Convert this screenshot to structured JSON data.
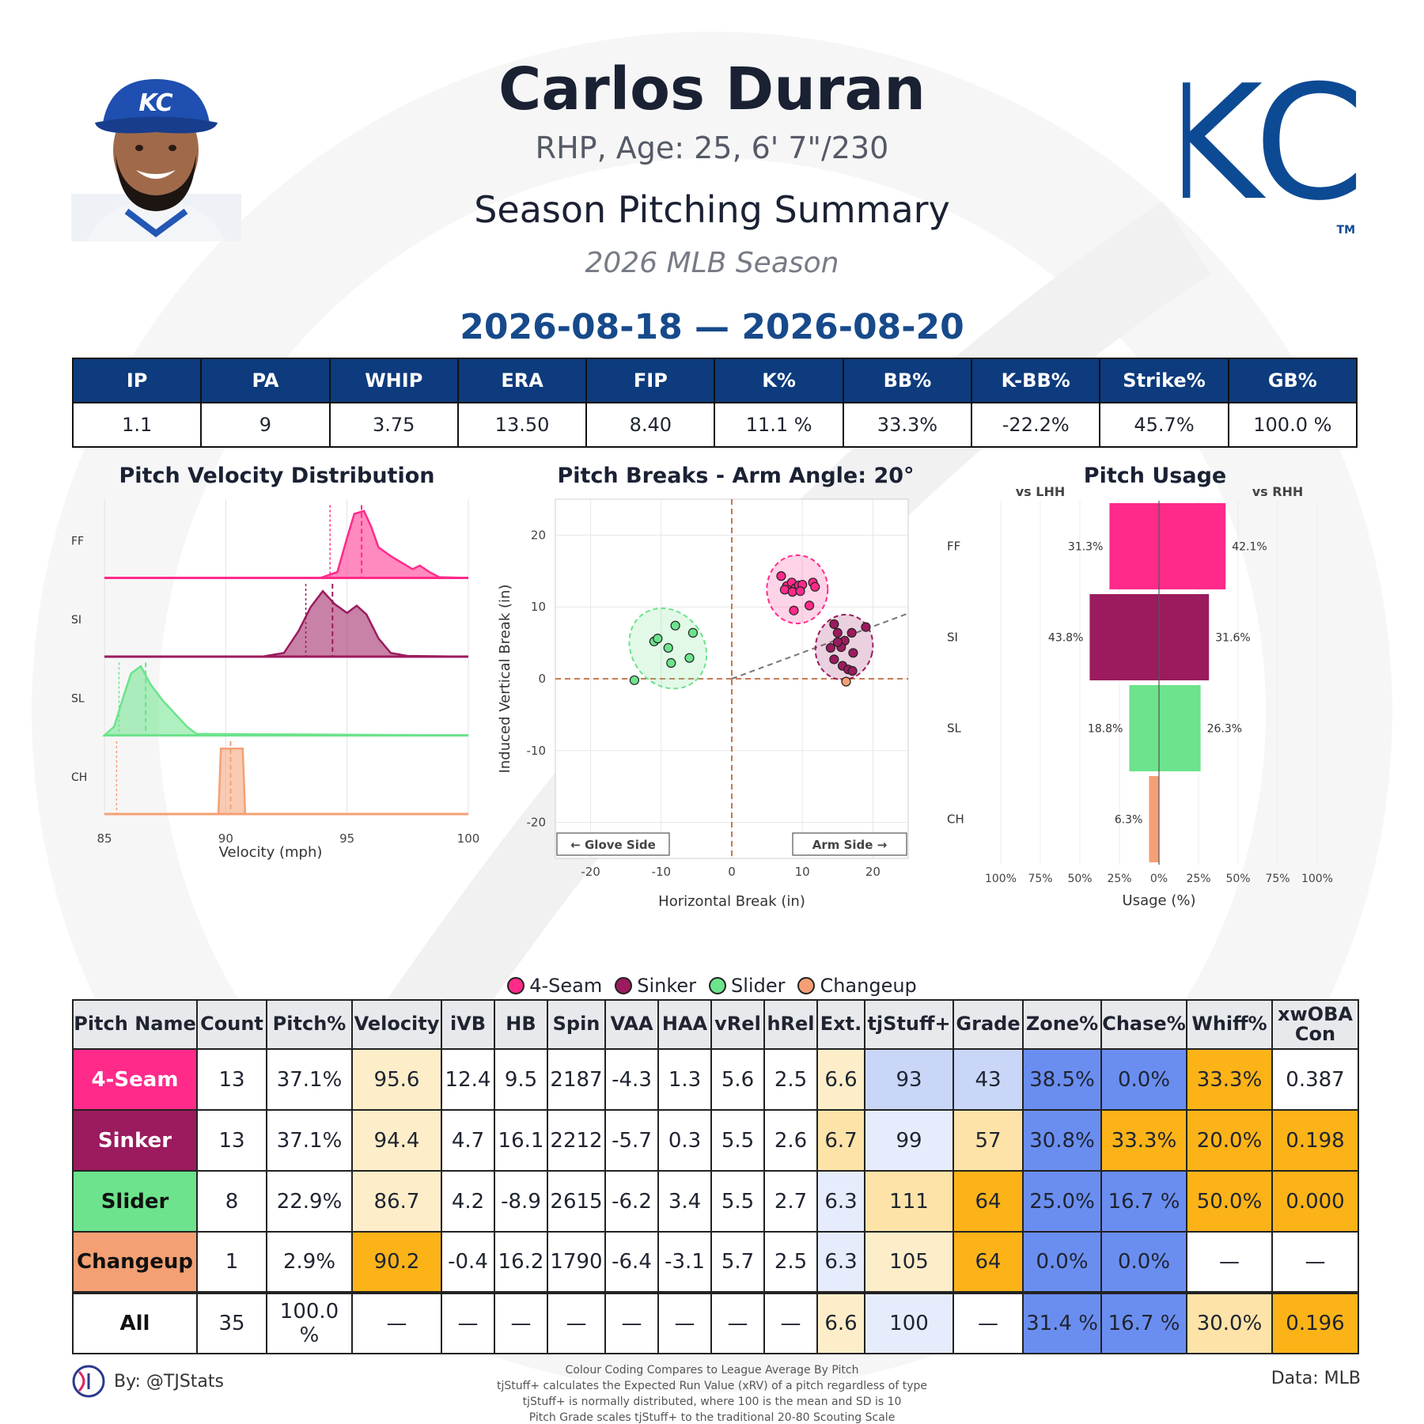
{
  "player": {
    "name": "Carlos Duran",
    "info": "RHP, Age: 25, 6' 7\"/230",
    "summary_title": "Season Pitching Summary",
    "season": "2026 MLB Season",
    "date_range": "2026-08-18 — 2026-08-20",
    "team_logo_text": "KC",
    "tm": "TM"
  },
  "colors": {
    "header_blue": "#0d3b7d",
    "date_blue": "#174a8b",
    "four_seam": "#ff2a8a",
    "sinker": "#9b1b5e",
    "slider": "#6ce38c",
    "changeup": "#f4a074",
    "cell_blue_strong": "#6a8ef0",
    "cell_blue_light": "#c9d6f8",
    "cell_blue_faint": "#e6ecfb",
    "cell_orange_strong": "#fcb318",
    "cell_orange_light": "#fde3a8",
    "cell_orange_faint": "#fdeec9"
  },
  "stats_bar": {
    "headers": [
      "IP",
      "PA",
      "WHIP",
      "ERA",
      "FIP",
      "K%",
      "BB%",
      "K-BB%",
      "Strike%",
      "GB%"
    ],
    "values": [
      "1.1",
      "9",
      "3.75",
      "13.50",
      "8.40",
      "11.1 %",
      "33.3%",
      "-22.2%",
      "45.7%",
      "100.0 %"
    ]
  },
  "charts_text": {
    "velocity_title": "Pitch Velocity Distribution",
    "breaks_title": "Pitch Breaks - Arm Angle: 20°",
    "usage_title": "Pitch Usage"
  },
  "chart_data": [
    {
      "type": "area",
      "title": "Pitch Velocity Distribution",
      "xlabel": "Velocity (mph)",
      "xlim": [
        85,
        100
      ],
      "xticks": [
        "85",
        "90",
        "95",
        "100"
      ],
      "series": [
        {
          "name": "FF",
          "mean": 95.6,
          "league_mean": 94.3,
          "range": [
            93.9,
            98.6
          ]
        },
        {
          "name": "SI",
          "mean": 94.4,
          "league_mean": 93.3,
          "range": [
            91.5,
            97.5
          ]
        },
        {
          "name": "SL",
          "mean": 86.7,
          "league_mean": 85.6,
          "range": [
            85.0,
            88.8
          ]
        },
        {
          "name": "CH",
          "mean": 90.2,
          "league_mean": 85.5,
          "range": [
            89.7,
            90.7
          ]
        }
      ]
    },
    {
      "type": "scatter",
      "title": "Pitch Breaks - Arm Angle: 20°",
      "xlabel": "Horizontal Break (in)",
      "ylabel": "Induced Vertical Break (in)",
      "xlim": [
        -25,
        25
      ],
      "ylim": [
        -25,
        25
      ],
      "xticks": [
        "-20",
        "-10",
        "0",
        "10",
        "20"
      ],
      "yticks": [
        "20",
        "10",
        "0",
        "-10",
        "-20"
      ],
      "glove_label": "← Glove Side",
      "arm_label": "Arm Side →",
      "arm_angle_deg": 20,
      "series": [
        {
          "name": "4-Seam",
          "points": [
            [
              7,
              14.3
            ],
            [
              7.8,
              12.9
            ],
            [
              8.5,
              13.4
            ],
            [
              9,
              12.6
            ],
            [
              9.5,
              13.0
            ],
            [
              10,
              13.1
            ],
            [
              7.5,
              12.4
            ],
            [
              8.6,
              12.1
            ],
            [
              9.7,
              12.2
            ],
            [
              11.5,
              13.4
            ],
            [
              11.8,
              12.8
            ],
            [
              8.8,
              9.5
            ],
            [
              11,
              10.2
            ]
          ]
        },
        {
          "name": "Sinker",
          "points": [
            [
              14.5,
              7.6
            ],
            [
              15,
              6.4
            ],
            [
              16,
              5.3
            ],
            [
              17,
              6.4
            ],
            [
              19,
              7.2
            ],
            [
              14,
              4.3
            ],
            [
              15.5,
              4.4
            ],
            [
              17.2,
              3.6
            ],
            [
              14.5,
              2.7
            ],
            [
              15.7,
              1.8
            ],
            [
              16.5,
              1.3
            ],
            [
              17.1,
              1.1
            ],
            [
              15,
              5.1
            ]
          ]
        },
        {
          "name": "Slider",
          "points": [
            [
              -13.8,
              -0.2
            ],
            [
              -11,
              5.2
            ],
            [
              -10.5,
              5.6
            ],
            [
              -8,
              7.4
            ],
            [
              -5.5,
              6.4
            ],
            [
              -9,
              4.3
            ],
            [
              -8.6,
              2.2
            ],
            [
              -6,
              2.9
            ]
          ]
        },
        {
          "name": "Changeup",
          "points": [
            [
              16.2,
              -0.4
            ]
          ]
        }
      ]
    },
    {
      "type": "bar",
      "title": "Pitch Usage",
      "xlabel": "Usage (%)",
      "left_label": "vs LHH",
      "right_label": "vs RHH",
      "categories": [
        "FF",
        "SI",
        "SL",
        "CH"
      ],
      "xticks": [
        "100%",
        "75%",
        "50%",
        "25%",
        "0%",
        "25%",
        "50%",
        "75%",
        "100%"
      ],
      "series": [
        {
          "name": "vs LHH",
          "values": [
            31.3,
            43.8,
            18.8,
            6.3
          ],
          "labels": [
            "31.3%",
            "43.8%",
            "18.8%",
            "6.3%"
          ]
        },
        {
          "name": "vs RHH",
          "values": [
            42.1,
            31.6,
            26.3,
            0
          ],
          "labels": [
            "42.1%",
            "31.6%",
            "26.3%",
            ""
          ]
        }
      ]
    }
  ],
  "legend": [
    "4-Seam",
    "Sinker",
    "Slider",
    "Changeup"
  ],
  "pitch_table": {
    "headers": [
      "Pitch Name",
      "Count",
      "Pitch%",
      "Velocity",
      "iVB",
      "HB",
      "Spin",
      "VAA",
      "HAA",
      "vRel",
      "hRel",
      "Ext.",
      "tjStuff+",
      "Grade",
      "Zone%",
      "Chase%",
      "Whiff%",
      "xwOBA Con"
    ],
    "rows": [
      {
        "name": "4-Seam",
        "cells": [
          "13",
          "37.1%",
          "95.6",
          "12.4",
          "9.5",
          "2187",
          "-4.3",
          "1.3",
          "5.6",
          "2.5",
          "6.6",
          "93",
          "43",
          "38.5%",
          "0.0%",
          "33.3%",
          "0.387"
        ]
      },
      {
        "name": "Sinker",
        "cells": [
          "13",
          "37.1%",
          "94.4",
          "4.7",
          "16.1",
          "2212",
          "-5.7",
          "0.3",
          "5.5",
          "2.6",
          "6.7",
          "99",
          "57",
          "30.8%",
          "33.3%",
          "20.0%",
          "0.198"
        ]
      },
      {
        "name": "Slider",
        "cells": [
          "8",
          "22.9%",
          "86.7",
          "4.2",
          "-8.9",
          "2615",
          "-6.2",
          "3.4",
          "5.5",
          "2.7",
          "6.3",
          "111",
          "64",
          "25.0%",
          "16.7 %",
          "50.0%",
          "0.000"
        ]
      },
      {
        "name": "Changeup",
        "cells": [
          "1",
          "2.9%",
          "90.2",
          "-0.4",
          "16.2",
          "1790",
          "-6.4",
          "-3.1",
          "5.7",
          "2.5",
          "6.3",
          "105",
          "64",
          "0.0%",
          "0.0%",
          "—",
          "—"
        ]
      },
      {
        "name": "All",
        "cells": [
          "35",
          "100.0 %",
          "—",
          "—",
          "—",
          "—",
          "—",
          "—",
          "—",
          "—",
          "6.6",
          "100",
          "—",
          "31.4 %",
          "16.7 %",
          "30.0%",
          "0.196"
        ]
      }
    ]
  },
  "footer": {
    "by": "By: @TJStats",
    "notes": [
      "Colour Coding Compares to League Average By Pitch",
      "tjStuff+ calculates the Expected Run Value (xRV) of a pitch regardless of type",
      "tjStuff+ is normally distributed, where 100 is the mean and SD is 10",
      "Pitch Grade scales tjStuff+ to the traditional 20-80 Scouting Scale"
    ],
    "data": "Data: MLB"
  }
}
